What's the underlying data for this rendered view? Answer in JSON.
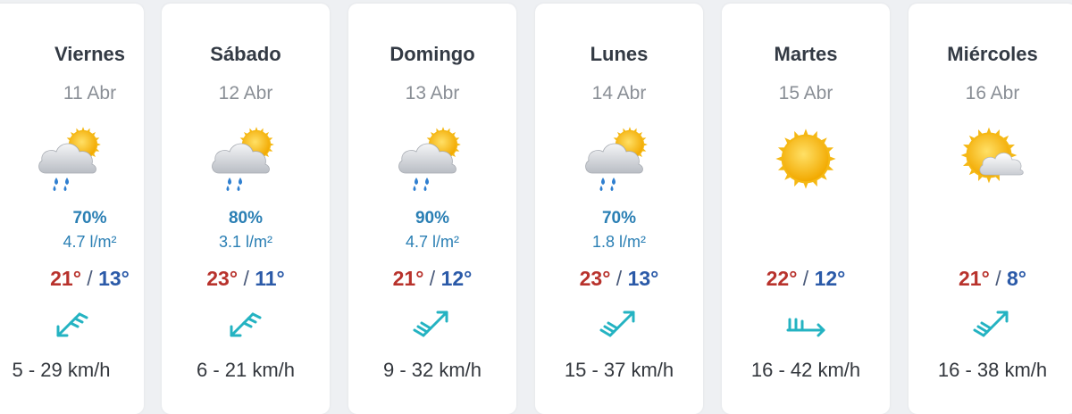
{
  "forecast": [
    {
      "day": "Viernes",
      "date": "11 Abr",
      "icon": "sun-cloud-rain-icon",
      "prob": "70%",
      "rain": "4.7 l/m²",
      "max": "21°",
      "sep": "/",
      "min": "13°",
      "wind_icon": "wind-southwest-arrow-icon",
      "wind": "5 - 29 km/h"
    },
    {
      "day": "Sábado",
      "date": "12 Abr",
      "icon": "sun-cloud-rain-icon",
      "prob": "80%",
      "rain": "3.1 l/m²",
      "max": "23°",
      "sep": "/",
      "min": "11°",
      "wind_icon": "wind-southwest-arrow-icon",
      "wind": "6 - 21 km/h"
    },
    {
      "day": "Domingo",
      "date": "13 Abr",
      "icon": "sun-cloud-rain-icon",
      "prob": "90%",
      "rain": "4.7 l/m²",
      "max": "21°",
      "sep": "/",
      "min": "12°",
      "wind_icon": "wind-northeast-arrow-icon",
      "wind": "9 - 32 km/h"
    },
    {
      "day": "Lunes",
      "date": "14 Abr",
      "icon": "sun-cloud-rain-icon",
      "prob": "70%",
      "rain": "1.8 l/m²",
      "max": "23°",
      "sep": "/",
      "min": "13°",
      "wind_icon": "wind-northeast-arrow-icon",
      "wind": "15 - 37 km/h"
    },
    {
      "day": "Martes",
      "date": "15 Abr",
      "icon": "sun-icon",
      "prob": "",
      "rain": "",
      "max": "22°",
      "sep": "/",
      "min": "12°",
      "wind_icon": "wind-east-arrow-icon",
      "wind": "16 - 42 km/h"
    },
    {
      "day": "Miércoles",
      "date": "16 Abr",
      "icon": "sun-behind-cloud-icon",
      "prob": "",
      "rain": "",
      "max": "21°",
      "sep": "/",
      "min": "8°",
      "wind_icon": "wind-northeast-arrow-icon",
      "wind": "16 - 38 km/h"
    }
  ],
  "colors": {
    "max": "#b8322c",
    "min": "#2b5aa8",
    "precip": "#2a7fb4",
    "wind": "#24b3c2",
    "sun": "#f5b814"
  }
}
